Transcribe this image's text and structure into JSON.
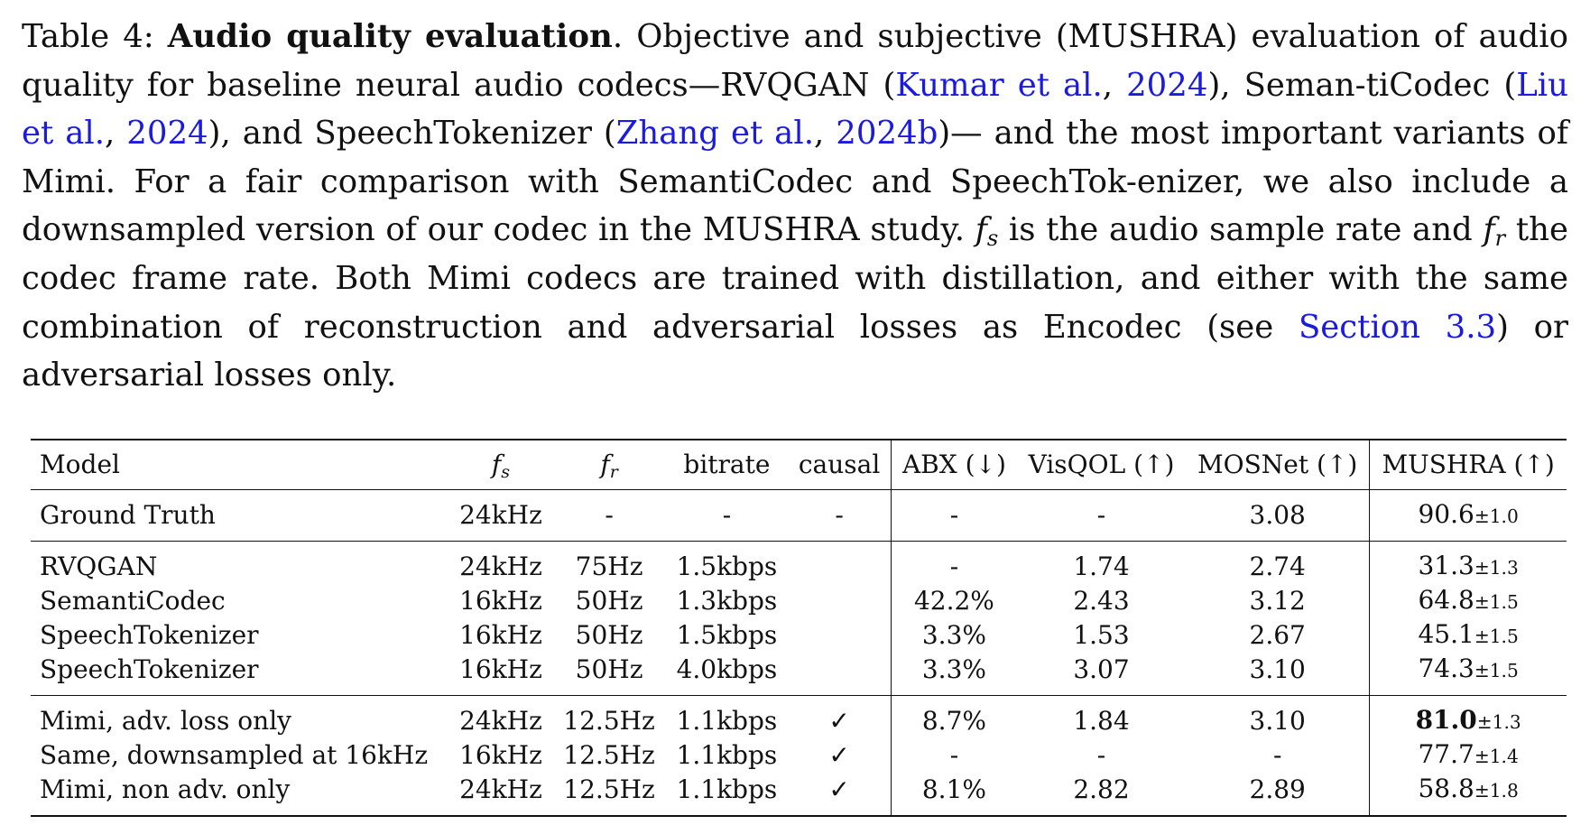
{
  "caption": {
    "label": "Table 4:",
    "title": "Audio quality evaluation",
    "text_1": ". Objective and subjective (MUSHRA) evaluation of audio quality for baseline neural audio codecs—RVQGAN (",
    "cite_kumar_authors": "Kumar et al.",
    "cite_kumar_year": "2024",
    "text_2": "), Seman-tiCodec (",
    "cite_liu_authors": "Liu et al.",
    "cite_liu_year": "2024",
    "text_3": "), and SpeechTokenizer  (",
    "cite_zhang_authors": "Zhang et al.",
    "cite_zhang_year": "2024b",
    "text_4": ")— and the most important variants of Mimi.  For a fair comparison with SemantiCodec and SpeechTok-enizer, we also include a downsampled version of our codec in the MUSHRA study.  ",
    "fs_symbol": "f",
    "fs_sub": "s",
    "text_5": " is the audio sample rate and ",
    "fr_symbol": "f",
    "fr_sub": "r",
    "text_6": " the codec frame rate.  Both Mimi codecs are trained with distillation, and either with the same combination of reconstruction and adversarial losses as Encodec (see ",
    "section_ref": "Section 3.3",
    "text_7": ") or adversarial losses only."
  },
  "table": {
    "headers": {
      "model": "Model",
      "fs_symbol": "f",
      "fs_sub": "s",
      "fr_symbol": "f",
      "fr_sub": "r",
      "bitrate": "bitrate",
      "causal": "causal",
      "abx": "ABX (↓)",
      "visqol": "VisQOL (↑)",
      "mosnet": "MOSNet (↑)",
      "mushra": "MUSHRA (↑)"
    },
    "groups": [
      [
        {
          "model": "Ground Truth",
          "fs": "24kHz",
          "fr": "-",
          "bitrate": "-",
          "causal": "-",
          "abx": "-",
          "visqol": "-",
          "mosnet": "3.08",
          "mushra": "90.6",
          "mushra_pm": "±1.0"
        }
      ],
      [
        {
          "model": "RVQGAN",
          "fs": "24kHz",
          "fr": "75Hz",
          "bitrate": "1.5kbps",
          "causal": "",
          "abx": "-",
          "visqol": "1.74",
          "mosnet": "2.74",
          "mushra": "31.3",
          "mushra_pm": "±1.3"
        },
        {
          "model": "SemantiCodec",
          "fs": "16kHz",
          "fr": "50Hz",
          "bitrate": "1.3kbps",
          "causal": "",
          "abx": "42.2%",
          "visqol": "2.43",
          "mosnet": "3.12",
          "mushra": "64.8",
          "mushra_pm": "±1.5"
        },
        {
          "model": "SpeechTokenizer",
          "fs": "16kHz",
          "fr": "50Hz",
          "bitrate": "1.5kbps",
          "causal": "",
          "abx": "3.3%",
          "visqol": "1.53",
          "mosnet": "2.67",
          "mushra": "45.1",
          "mushra_pm": "±1.5"
        },
        {
          "model": "SpeechTokenizer",
          "fs": "16kHz",
          "fr": "50Hz",
          "bitrate": "4.0kbps",
          "causal": "",
          "abx": "3.3%",
          "visqol": "3.07",
          "mosnet": "3.10",
          "mushra": "74.3",
          "mushra_pm": "±1.5"
        }
      ],
      [
        {
          "model": "Mimi, adv. loss only",
          "fs": "24kHz",
          "fr": "12.5Hz",
          "bitrate": "1.1kbps",
          "causal": "✓",
          "abx": "8.7%",
          "visqol": "1.84",
          "mosnet": "3.10",
          "mushra": "81.0",
          "mushra_pm": "±1.3"
        },
        {
          "model": "Same, downsampled at 16kHz",
          "fs": "16kHz",
          "fr": "12.5Hz",
          "bitrate": "1.1kbps",
          "causal": "✓",
          "abx": "-",
          "visqol": "-",
          "mosnet": "-",
          "mushra": "77.7",
          "mushra_pm": "±1.4"
        },
        {
          "model": "Mimi, non adv. only",
          "fs": "24kHz",
          "fr": "12.5Hz",
          "bitrate": "1.1kbps",
          "causal": "✓",
          "abx": "8.1%",
          "visqol": "2.82",
          "mosnet": "2.89",
          "mushra": "58.8",
          "mushra_pm": "±1.8"
        }
      ]
    ]
  }
}
